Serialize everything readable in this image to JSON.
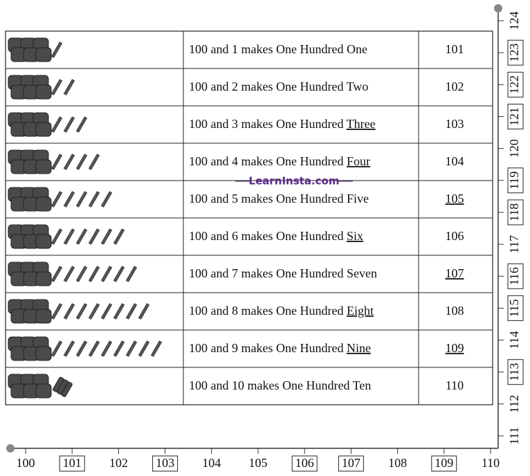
{
  "table": {
    "rows": [
      {
        "text": "100 and 1 makes One Hundred",
        "word": "One",
        "word_underlined": false,
        "number": "101",
        "number_underlined": false,
        "ones": 1
      },
      {
        "text": "100 and 2 makes One Hundred",
        "word": "Two",
        "word_underlined": false,
        "number": "102",
        "number_underlined": false,
        "ones": 2
      },
      {
        "text": "100 and 3 makes One Hundred",
        "word": "Three",
        "word_underlined": true,
        "number": "103",
        "number_underlined": false,
        "ones": 3
      },
      {
        "text": "100 and 4 makes One Hundred",
        "word": "Four",
        "word_underlined": true,
        "number": "104",
        "number_underlined": false,
        "ones": 4
      },
      {
        "text": "100 and 5 makes One Hundred",
        "word": "Five",
        "word_underlined": false,
        "number": "105",
        "number_underlined": true,
        "ones": 5
      },
      {
        "text": "100 and 6 makes One Hundred",
        "word": "Six",
        "word_underlined": true,
        "number": "106",
        "number_underlined": false,
        "ones": 6
      },
      {
        "text": "100 and 7 makes One Hundred",
        "word": "Seven",
        "word_underlined": false,
        "number": "107",
        "number_underlined": true,
        "ones": 7
      },
      {
        "text": "100 and 8 makes One Hundred",
        "word": "Eight",
        "word_underlined": true,
        "number": "108",
        "number_underlined": false,
        "ones": 8
      },
      {
        "text": "100 and 9 makes One Hundred",
        "word": "Nine",
        "word_underlined": true,
        "number": "109",
        "number_underlined": true,
        "ones": 9
      },
      {
        "text": "100 and 10 makes One Hundred",
        "word": "Ten",
        "word_underlined": false,
        "number": "110",
        "number_underlined": false,
        "ones": 10
      }
    ]
  },
  "bottom_line": [
    {
      "label": "100",
      "boxed": false
    },
    {
      "label": "101",
      "boxed": true
    },
    {
      "label": "102",
      "boxed": false
    },
    {
      "label": "103",
      "boxed": true
    },
    {
      "label": "104",
      "boxed": false
    },
    {
      "label": "105",
      "boxed": false
    },
    {
      "label": "106",
      "boxed": true
    },
    {
      "label": "107",
      "boxed": true
    },
    {
      "label": "108",
      "boxed": false
    },
    {
      "label": "109",
      "boxed": true
    },
    {
      "label": "110",
      "boxed": false
    }
  ],
  "side_line": [
    {
      "label": "111",
      "boxed": false
    },
    {
      "label": "112",
      "boxed": false
    },
    {
      "label": "113",
      "boxed": true
    },
    {
      "label": "114",
      "boxed": false
    },
    {
      "label": "115",
      "boxed": true
    },
    {
      "label": "116",
      "boxed": true
    },
    {
      "label": "117",
      "boxed": false
    },
    {
      "label": "118",
      "boxed": true
    },
    {
      "label": "119",
      "boxed": true
    },
    {
      "label": "120",
      "boxed": false
    },
    {
      "label": "121",
      "boxed": true
    },
    {
      "label": "122",
      "boxed": true
    },
    {
      "label": "123",
      "boxed": true
    },
    {
      "label": "124",
      "boxed": false
    }
  ],
  "watermark": "LearnInsta.com"
}
